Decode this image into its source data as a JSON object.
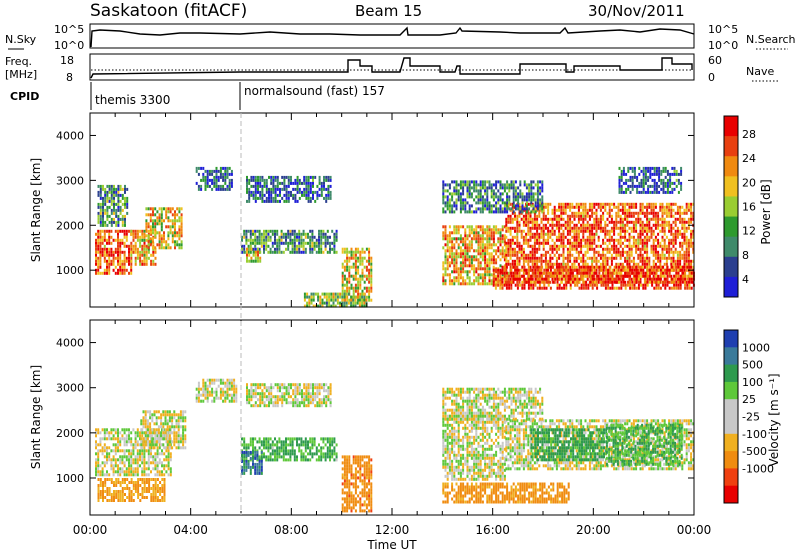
{
  "header": {
    "title": "Saskatoon (fitACF)",
    "beam": "Beam 15",
    "date": "30/Nov/2011"
  },
  "top_panels": {
    "nsky_label": "N.Sky",
    "nsky_ticks": [
      "10^5",
      "10^0"
    ],
    "nsearch_label": "N.Search",
    "nsearch_ticks": [
      "10^5",
      "10^0"
    ],
    "freq_label_1": "Freq.",
    "freq_label_2": "[MHz]",
    "freq_ticks": [
      "18",
      "8"
    ],
    "nave_label": "Nave",
    "nave_ticks": [
      "60",
      "0"
    ],
    "cpid_label": "CPID",
    "cpid_modes": [
      {
        "name": "themis 3300",
        "start_hour": 0
      },
      {
        "name": "normalsound (fast) 157",
        "start_hour": 6
      }
    ]
  },
  "colors": {
    "power_scale": [
      "#1f1fd6",
      "#2b3f8f",
      "#3f8a6a",
      "#2e9a2e",
      "#9acd32",
      "#f0c020",
      "#f08a10",
      "#e84010",
      "#e80000"
    ],
    "velocity_scale": [
      "#e80000",
      "#f04010",
      "#f08c10",
      "#f0b020",
      "#c8c8c8",
      "#c8c8c8",
      "#5ec83a",
      "#2e9a4e",
      "#3a7a9a",
      "#1f3fb0"
    ]
  },
  "chart_data": [
    {
      "type": "heatmap",
      "title": "",
      "xlabel": "Time UT",
      "ylabel": "Slant Range [km]",
      "x_ticks": [
        "00:00",
        "04:00",
        "08:00",
        "12:00",
        "16:00",
        "20:00",
        "00:00"
      ],
      "xlim": [
        0,
        24
      ],
      "y_ticks": [
        "1000",
        "2000",
        "3000",
        "4000"
      ],
      "ylim": [
        180,
        4500
      ],
      "colorbar": {
        "label": "Power [dB]",
        "ticks": [
          "28",
          "24",
          "20",
          "16",
          "12",
          "8",
          "4"
        ],
        "range": [
          0,
          30
        ]
      },
      "regions": [
        {
          "x": [
            0.2,
            1.6
          ],
          "y": [
            900,
            1900
          ],
          "value": 24
        },
        {
          "x": [
            1.6,
            2.6
          ],
          "y": [
            1100,
            1900
          ],
          "value": 20
        },
        {
          "x": [
            2.2,
            3.6
          ],
          "y": [
            1500,
            2400
          ],
          "value": 18
        },
        {
          "x": [
            0.3,
            1.5
          ],
          "y": [
            2000,
            2900
          ],
          "value": 10
        },
        {
          "x": [
            4.2,
            5.6
          ],
          "y": [
            2800,
            3300
          ],
          "value": 6
        },
        {
          "x": [
            6.2,
            9.6
          ],
          "y": [
            2500,
            3100
          ],
          "value": 6
        },
        {
          "x": [
            6.0,
            9.8
          ],
          "y": [
            1400,
            1900
          ],
          "value": 10
        },
        {
          "x": [
            6.2,
            6.8
          ],
          "y": [
            1200,
            1500
          ],
          "value": 18
        },
        {
          "x": [
            10.0,
            11.2
          ],
          "y": [
            300,
            1500
          ],
          "value": 18
        },
        {
          "x": [
            8.5,
            11.0
          ],
          "y": [
            200,
            500
          ],
          "value": 14
        },
        {
          "x": [
            14.0,
            16.5
          ],
          "y": [
            700,
            2000
          ],
          "value": 20
        },
        {
          "x": [
            16.5,
            24.0
          ],
          "y": [
            700,
            2500
          ],
          "value": 24
        },
        {
          "x": [
            16.0,
            24.0
          ],
          "y": [
            600,
            1100
          ],
          "value": 26
        },
        {
          "x": [
            14.0,
            18.0
          ],
          "y": [
            2300,
            3000
          ],
          "value": 8
        },
        {
          "x": [
            21.0,
            23.5
          ],
          "y": [
            2700,
            3300
          ],
          "value": 6
        }
      ]
    },
    {
      "type": "heatmap",
      "title": "",
      "xlabel": "Time UT",
      "ylabel": "Slant Range [km]",
      "x_ticks": [
        "00:00",
        "04:00",
        "08:00",
        "12:00",
        "16:00",
        "20:00",
        "00:00"
      ],
      "xlim": [
        0,
        24
      ],
      "y_ticks": [
        "1000",
        "2000",
        "3000",
        "4000"
      ],
      "ylim": [
        180,
        4500
      ],
      "colorbar": {
        "label": "Velocity [m s⁻¹]",
        "ticks": [
          "1000",
          "500",
          "100",
          "25",
          "-25",
          "-100",
          "-500",
          "-1000"
        ]
      },
      "regions": [
        {
          "x": [
            0.2,
            3.2
          ],
          "y": [
            1100,
            2100
          ],
          "value": 0
        },
        {
          "x": [
            2.0,
            3.8
          ],
          "y": [
            1700,
            2500
          ],
          "value": 0
        },
        {
          "x": [
            0.3,
            3.0
          ],
          "y": [
            500,
            1000
          ],
          "value": -120
        },
        {
          "x": [
            4.2,
            5.8
          ],
          "y": [
            2700,
            3200
          ],
          "value": 0
        },
        {
          "x": [
            6.0,
            9.8
          ],
          "y": [
            1400,
            1900
          ],
          "value": 120
        },
        {
          "x": [
            6.0,
            6.8
          ],
          "y": [
            1100,
            1600
          ],
          "value": 900
        },
        {
          "x": [
            6.2,
            9.6
          ],
          "y": [
            2600,
            3100
          ],
          "value": 0
        },
        {
          "x": [
            10.0,
            11.2
          ],
          "y": [
            300,
            1500
          ],
          "value": -300
        },
        {
          "x": [
            14.0,
            19.0
          ],
          "y": [
            500,
            900
          ],
          "value": -200
        },
        {
          "x": [
            14.0,
            16.5
          ],
          "y": [
            1000,
            2400
          ],
          "value": 0
        },
        {
          "x": [
            16.5,
            24.0
          ],
          "y": [
            1200,
            2300
          ],
          "value": 0
        },
        {
          "x": [
            17.5,
            20.5
          ],
          "y": [
            1400,
            2100
          ],
          "value": 200
        },
        {
          "x": [
            20.5,
            23.5
          ],
          "y": [
            1300,
            2200
          ],
          "value": 100
        },
        {
          "x": [
            14.0,
            18.0
          ],
          "y": [
            2300,
            3000
          ],
          "value": 0
        }
      ]
    }
  ]
}
